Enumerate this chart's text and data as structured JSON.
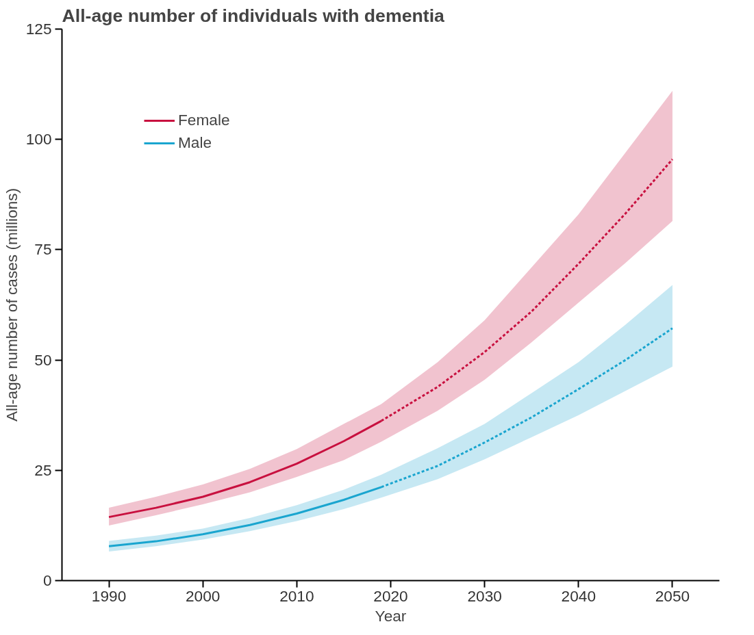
{
  "chart_data": {
    "type": "line",
    "title": "All-age number of individuals with dementia",
    "xlabel": "Year",
    "ylabel": "All-age number of cases (millions)",
    "xlim": [
      1985,
      2055
    ],
    "xticks": [
      1990,
      2000,
      2010,
      2020,
      2030,
      2040,
      2050
    ],
    "ylim": [
      0,
      125
    ],
    "yticks": [
      0,
      25,
      50,
      75,
      100,
      125
    ],
    "grid": false,
    "legend": "top left",
    "marker": "none",
    "series": [
      {
        "name": "Female",
        "color": "#c8103f",
        "line_style": "solid",
        "x": [
          1990,
          1995,
          2000,
          2005,
          2010,
          2015,
          2019
        ],
        "values": [
          14.4,
          16.5,
          19.0,
          22.3,
          26.5,
          31.6,
          36.2
        ],
        "lower": [
          12.5,
          14.8,
          17.3,
          20.0,
          23.5,
          27.3,
          31.5
        ],
        "upper": [
          16.5,
          19.0,
          21.8,
          25.3,
          29.8,
          35.5,
          40.0
        ]
      },
      {
        "color": "#c8103f",
        "line_style": "dashed",
        "x": [
          2019,
          2025,
          2030,
          2035,
          2040,
          2045,
          2050
        ],
        "values": [
          36.2,
          43.9,
          51.8,
          61.0,
          71.8,
          83.2,
          95.5
        ],
        "lower": [
          31.5,
          38.5,
          45.5,
          54.0,
          63.0,
          72.0,
          81.5
        ],
        "upper": [
          40.0,
          49.5,
          59.0,
          71.0,
          83.0,
          97.0,
          111.0
        ]
      },
      {
        "name": "Male",
        "color": "#1aa5cf",
        "line_style": "solid",
        "x": [
          1990,
          1995,
          2000,
          2005,
          2010,
          2015,
          2019
        ],
        "values": [
          7.8,
          8.9,
          10.5,
          12.6,
          15.2,
          18.3,
          21.2
        ],
        "lower": [
          6.6,
          7.8,
          9.3,
          11.2,
          13.5,
          16.2,
          18.8
        ],
        "upper": [
          9.0,
          10.2,
          11.8,
          14.2,
          17.1,
          20.6,
          24.0
        ]
      },
      {
        "color": "#1aa5cf",
        "line_style": "dashed",
        "x": [
          2019,
          2025,
          2030,
          2035,
          2040,
          2045,
          2050
        ],
        "values": [
          21.2,
          26.0,
          31.3,
          37.0,
          43.4,
          50.0,
          57.2
        ],
        "lower": [
          18.8,
          23.0,
          27.5,
          32.5,
          37.5,
          43.0,
          48.5
        ],
        "upper": [
          24.0,
          30.0,
          35.5,
          42.5,
          49.5,
          58.0,
          67.0
        ]
      }
    ]
  }
}
